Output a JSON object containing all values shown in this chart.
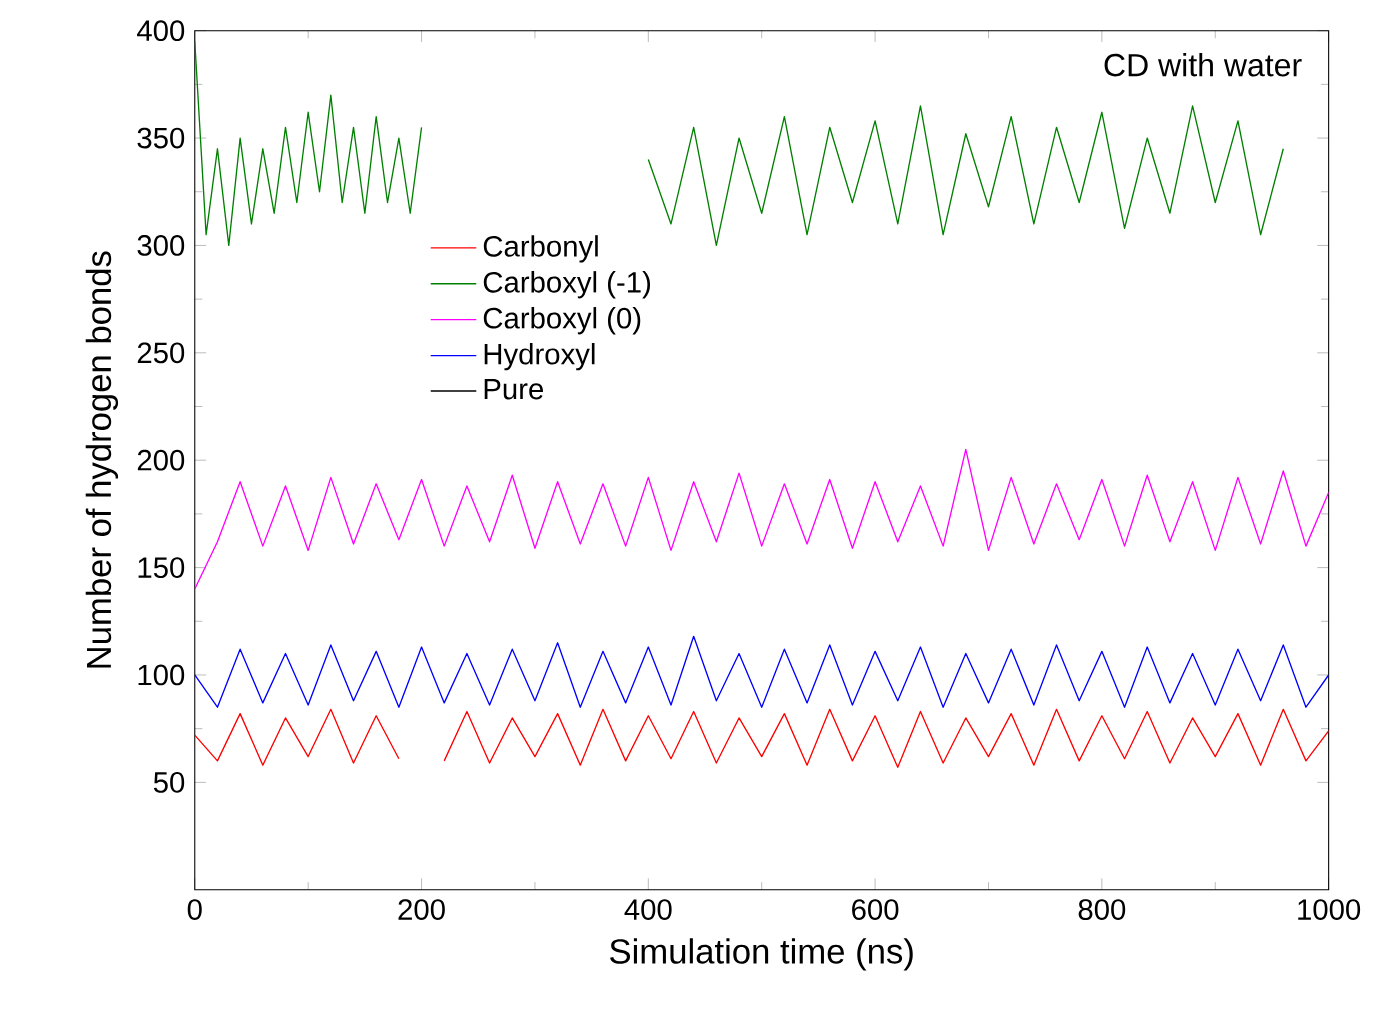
{
  "chart_data": {
    "type": "line",
    "xlabel": "Simulation time (ns)",
    "ylabel": "Number of hydrogen bonds",
    "annotations": [
      "CD with water"
    ],
    "x": [
      0,
      20,
      40,
      60,
      80,
      100,
      120,
      140,
      160,
      180,
      200,
      220,
      240,
      260,
      280,
      300,
      320,
      340,
      360,
      380,
      400,
      420,
      440,
      460,
      480,
      500,
      520,
      540,
      560,
      580,
      600,
      620,
      640,
      660,
      680,
      700,
      720,
      740,
      760,
      780,
      800,
      820,
      840,
      860,
      880,
      900,
      920,
      940,
      960,
      980,
      1000
    ],
    "xlim": [
      0,
      1000
    ],
    "ylim": [
      0,
      400
    ],
    "xticks": [
      0,
      200,
      400,
      600,
      800,
      1000
    ],
    "yticks": [
      50,
      100,
      150,
      200,
      250,
      300,
      350,
      400
    ],
    "legend": "center left",
    "grid": false,
    "marker": "none",
    "line_style": "solid",
    "series": [
      {
        "name": "Carbonyl",
        "color": "#ff0000",
        "values": [
          72,
          60,
          82,
          58,
          80,
          62,
          84,
          59,
          81,
          61,
          null,
          60,
          83,
          59,
          80,
          62,
          82,
          58,
          84,
          60,
          81,
          61,
          83,
          59,
          80,
          62,
          82,
          58,
          84,
          60,
          81,
          57,
          83,
          59,
          80,
          62,
          82,
          58,
          84,
          60,
          81,
          61,
          83,
          59,
          80,
          62,
          82,
          58,
          84,
          60,
          74
        ]
      },
      {
        "name": "Carboxyl (-1)",
        "color": "#008000",
        "x": [
          0,
          10,
          20,
          30,
          40,
          50,
          60,
          70,
          80,
          90,
          100,
          110,
          120,
          130,
          140,
          150,
          160,
          170,
          180,
          190,
          200,
          300,
          400,
          420,
          440,
          460,
          480,
          500,
          520,
          540,
          560,
          580,
          600,
          620,
          640,
          660,
          680,
          700,
          720,
          740,
          760,
          780,
          800,
          820,
          840,
          860,
          880,
          900,
          920,
          940,
          960
        ],
        "values": [
          395,
          305,
          345,
          300,
          350,
          310,
          345,
          315,
          355,
          320,
          362,
          325,
          370,
          320,
          355,
          315,
          360,
          320,
          350,
          315,
          355,
          null,
          340,
          310,
          355,
          300,
          350,
          315,
          360,
          305,
          355,
          320,
          358,
          310,
          365,
          305,
          352,
          318,
          360,
          310,
          355,
          320,
          362,
          308,
          350,
          315,
          365,
          320,
          358,
          305,
          345
        ]
      },
      {
        "name": "Carboxyl (0)",
        "color": "#ff00ff",
        "values": [
          140,
          162,
          190,
          160,
          188,
          158,
          192,
          161,
          189,
          163,
          191,
          160,
          188,
          162,
          193,
          159,
          190,
          161,
          189,
          160,
          192,
          158,
          190,
          162,
          194,
          160,
          189,
          161,
          191,
          159,
          190,
          162,
          188,
          160,
          205,
          158,
          192,
          161,
          189,
          163,
          191,
          160,
          193,
          162,
          190,
          158,
          192,
          161,
          195,
          160,
          185
        ]
      },
      {
        "name": "Hydroxyl",
        "color": "#0000ff",
        "values": [
          100,
          85,
          112,
          87,
          110,
          86,
          114,
          88,
          111,
          85,
          113,
          87,
          110,
          86,
          112,
          88,
          115,
          85,
          111,
          87,
          113,
          86,
          118,
          88,
          110,
          85,
          112,
          87,
          114,
          86,
          111,
          88,
          113,
          85,
          110,
          87,
          112,
          86,
          114,
          88,
          111,
          85,
          113,
          87,
          110,
          86,
          112,
          88,
          114,
          85,
          100
        ]
      },
      {
        "name": "Pure",
        "color": "#000000",
        "values": [
          null,
          null,
          null,
          null,
          null,
          null,
          null,
          null,
          null,
          null,
          null,
          null,
          null,
          null,
          null,
          null,
          null,
          null,
          null,
          null,
          null,
          null,
          null,
          null,
          null,
          null,
          null,
          null,
          null,
          null,
          null,
          null,
          null,
          null,
          null,
          null,
          null,
          null,
          null,
          null,
          null,
          null,
          null,
          null,
          null,
          null,
          null,
          null,
          null,
          null,
          null
        ]
      }
    ]
  }
}
